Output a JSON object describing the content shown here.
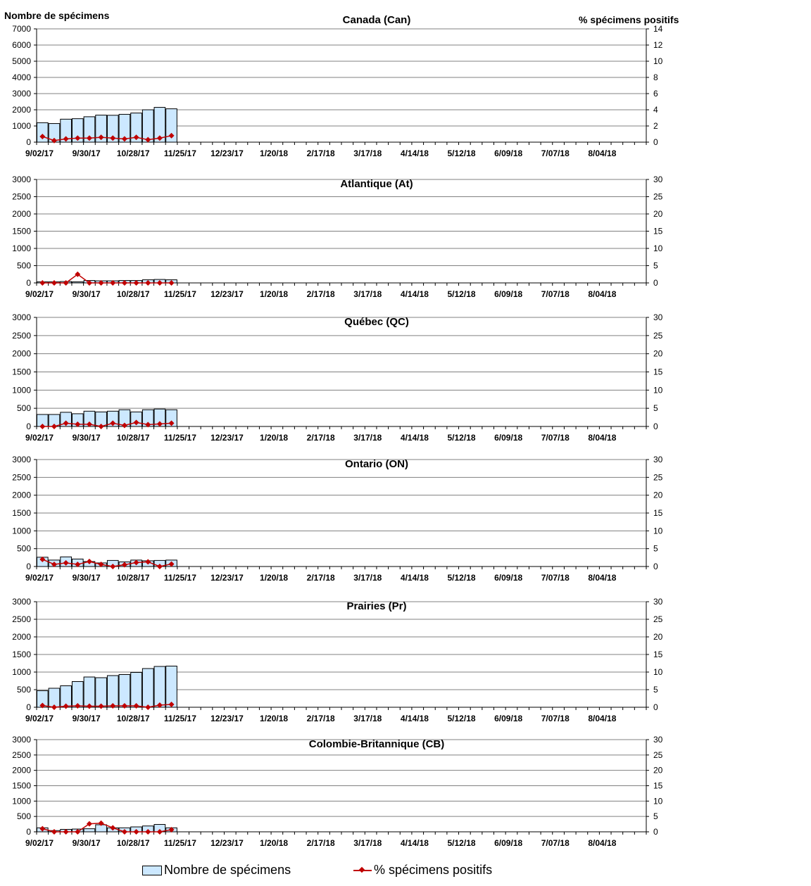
{
  "header": {
    "left_axis_title": "Nombre de spécimens",
    "right_axis_title": "% spécimens positifs"
  },
  "legend": {
    "bars_label": "Nombre de spécimens",
    "line_label": "% spécimens positifs"
  },
  "colors": {
    "bar_fill": "#cce8ff",
    "bar_stroke": "#000000",
    "line": "#c00000",
    "grid": "#808080"
  },
  "chart_data": [
    {
      "type": "bar",
      "title": "Canada (Can)",
      "x_tick_labels": [
        "9/02/17",
        "9/30/17",
        "10/28/17",
        "11/25/17",
        "12/23/17",
        "1/20/18",
        "2/17/18",
        "3/17/18",
        "4/14/18",
        "5/12/18",
        "6/09/18",
        "7/07/18",
        "8/04/18"
      ],
      "weeks": 52,
      "ylim_left": [
        0,
        7000
      ],
      "yticks_left": [
        0,
        1000,
        2000,
        3000,
        4000,
        5000,
        6000,
        7000
      ],
      "ylim_right": [
        0,
        14
      ],
      "yticks_right": [
        0,
        2,
        4,
        6,
        8,
        10,
        12,
        14
      ],
      "grid": true,
      "series": [
        {
          "name": "Nombre de spécimens",
          "type": "bar",
          "values": [
            1200,
            1150,
            1420,
            1450,
            1570,
            1670,
            1660,
            1720,
            1800,
            2000,
            2150,
            2060
          ]
        },
        {
          "name": "% spécimens positifs",
          "type": "line",
          "values": [
            0.7,
            0.2,
            0.4,
            0.5,
            0.5,
            0.6,
            0.5,
            0.4,
            0.6,
            0.3,
            0.5,
            0.8
          ]
        }
      ]
    },
    {
      "type": "bar",
      "title": "Atlantique (At)",
      "x_tick_labels": [
        "9/02/17",
        "9/30/17",
        "10/28/17",
        "11/25/17",
        "12/23/17",
        "1/20/18",
        "2/17/18",
        "3/17/18",
        "4/14/18",
        "5/12/18",
        "6/09/18",
        "7/07/18",
        "8/04/18"
      ],
      "weeks": 52,
      "ylim_left": [
        0,
        3000
      ],
      "yticks_left": [
        0,
        500,
        1000,
        1500,
        2000,
        2500,
        3000
      ],
      "ylim_right": [
        0,
        30
      ],
      "yticks_right": [
        0,
        5,
        10,
        15,
        20,
        25,
        30
      ],
      "grid": true,
      "series": [
        {
          "name": "Nombre de spécimens",
          "type": "bar",
          "values": [
            30,
            30,
            40,
            30,
            70,
            60,
            60,
            70,
            70,
            90,
            100,
            90
          ]
        },
        {
          "name": "% spécimens positifs",
          "type": "line",
          "values": [
            0,
            0,
            0,
            2.5,
            0,
            0,
            0,
            0,
            0,
            0,
            0,
            0
          ]
        }
      ]
    },
    {
      "type": "bar",
      "title": "Québec (QC)",
      "x_tick_labels": [
        "9/02/17",
        "9/30/17",
        "10/28/17",
        "11/25/17",
        "12/23/17",
        "1/20/18",
        "2/17/18",
        "3/17/18",
        "4/14/18",
        "5/12/18",
        "6/09/18",
        "7/07/18",
        "8/04/18"
      ],
      "weeks": 52,
      "ylim_left": [
        0,
        3000
      ],
      "yticks_left": [
        0,
        500,
        1000,
        1500,
        2000,
        2500,
        3000
      ],
      "ylim_right": [
        0,
        30
      ],
      "yticks_right": [
        0,
        5,
        10,
        15,
        20,
        25,
        30
      ],
      "grid": true,
      "series": [
        {
          "name": "Nombre de spécimens",
          "type": "bar",
          "values": [
            330,
            330,
            390,
            350,
            420,
            400,
            420,
            460,
            400,
            460,
            480,
            460
          ]
        },
        {
          "name": "% spécimens positifs",
          "type": "line",
          "values": [
            0,
            0,
            0.9,
            0.6,
            0.6,
            0,
            0.9,
            0.3,
            1.1,
            0.5,
            0.7,
            0.9
          ]
        }
      ]
    },
    {
      "type": "bar",
      "title": "Ontario (ON)",
      "x_tick_labels": [
        "9/02/17",
        "9/30/17",
        "10/28/17",
        "11/25/17",
        "12/23/17",
        "1/20/18",
        "2/17/18",
        "3/17/18",
        "4/14/18",
        "5/12/18",
        "6/09/18",
        "7/07/18",
        "8/04/18"
      ],
      "weeks": 52,
      "ylim_left": [
        0,
        3000
      ],
      "yticks_left": [
        0,
        500,
        1000,
        1500,
        2000,
        2500,
        3000
      ],
      "ylim_right": [
        0,
        30
      ],
      "yticks_right": [
        0,
        5,
        10,
        15,
        20,
        25,
        30
      ],
      "grid": true,
      "series": [
        {
          "name": "Nombre de spécimens",
          "type": "bar",
          "values": [
            260,
            180,
            270,
            210,
            140,
            100,
            170,
            130,
            180,
            160,
            170,
            180
          ]
        },
        {
          "name": "% spécimens positifs",
          "type": "line",
          "values": [
            2.0,
            0.6,
            1.0,
            0.6,
            1.4,
            0.6,
            0,
            0.5,
            1.1,
            1.3,
            0,
            0.7
          ]
        }
      ]
    },
    {
      "type": "bar",
      "title": "Prairies (Pr)",
      "x_tick_labels": [
        "9/02/17",
        "9/30/17",
        "10/28/17",
        "11/25/17",
        "12/23/17",
        "1/20/18",
        "2/17/18",
        "3/17/18",
        "4/14/18",
        "5/12/18",
        "6/09/18",
        "7/07/18",
        "8/04/18"
      ],
      "weeks": 52,
      "ylim_left": [
        0,
        3000
      ],
      "yticks_left": [
        0,
        500,
        1000,
        1500,
        2000,
        2500,
        3000
      ],
      "ylim_right": [
        0,
        30
      ],
      "yticks_right": [
        0,
        5,
        10,
        15,
        20,
        25,
        30
      ],
      "grid": true,
      "series": [
        {
          "name": "Nombre de spécimens",
          "type": "bar",
          "values": [
            470,
            540,
            610,
            730,
            860,
            840,
            900,
            930,
            990,
            1100,
            1160,
            1170
          ]
        },
        {
          "name": "% spécimens positifs",
          "type": "line",
          "values": [
            0.5,
            0,
            0.3,
            0.4,
            0.3,
            0.3,
            0.4,
            0.4,
            0.4,
            0,
            0.6,
            0.8
          ]
        }
      ]
    },
    {
      "type": "bar",
      "title": "Colombie-Britannique (CB)",
      "x_tick_labels": [
        "9/02/17",
        "9/30/17",
        "10/28/17",
        "11/25/17",
        "12/23/17",
        "1/20/18",
        "2/17/18",
        "3/17/18",
        "4/14/18",
        "5/12/18",
        "6/09/18",
        "7/07/18",
        "8/04/18"
      ],
      "weeks": 52,
      "ylim_left": [
        0,
        3000
      ],
      "yticks_left": [
        0,
        500,
        1000,
        1500,
        2000,
        2500,
        3000
      ],
      "ylim_right": [
        0,
        30
      ],
      "yticks_right": [
        0,
        5,
        10,
        15,
        20,
        25,
        30
      ],
      "grid": true,
      "series": [
        {
          "name": "Nombre de spécimens",
          "type": "bar",
          "values": [
            130,
            40,
            80,
            90,
            100,
            230,
            130,
            130,
            160,
            190,
            240,
            130
          ]
        },
        {
          "name": "% spécimens positifs",
          "type": "line",
          "values": [
            1.0,
            0,
            0,
            0,
            2.6,
            2.8,
            1.3,
            0,
            0,
            0,
            0,
            0.7
          ]
        }
      ]
    }
  ]
}
